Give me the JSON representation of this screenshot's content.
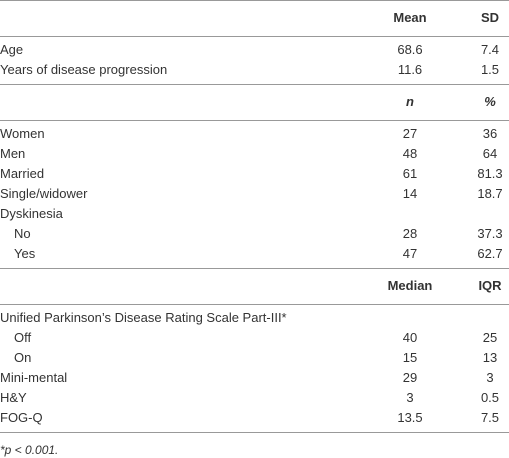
{
  "table": {
    "sections": [
      {
        "header": [
          "Mean",
          "SD"
        ],
        "header_italic": false,
        "rows": [
          {
            "label": "Age",
            "values": [
              "68.6",
              "7.4"
            ],
            "indent": false
          },
          {
            "label": "Years of disease progression",
            "values": [
              "11.6",
              "1.5"
            ],
            "indent": false
          }
        ]
      },
      {
        "header": [
          "n",
          "%"
        ],
        "header_italic": true,
        "rows": [
          {
            "label": "Women",
            "values": [
              "27",
              "36"
            ],
            "indent": false
          },
          {
            "label": "Men",
            "values": [
              "48",
              "64"
            ],
            "indent": false
          },
          {
            "label": "Married",
            "values": [
              "61",
              "81.3"
            ],
            "indent": false
          },
          {
            "label": "Single/widower",
            "values": [
              "14",
              "18.7"
            ],
            "indent": false
          },
          {
            "label": "Dyskinesia",
            "values": [],
            "indent": false
          },
          {
            "label": "No",
            "values": [
              "28",
              "37.3"
            ],
            "indent": true
          },
          {
            "label": "Yes",
            "values": [
              "47",
              "62.7"
            ],
            "indent": true
          }
        ]
      },
      {
        "header": [
          "Median",
          "IQR"
        ],
        "header_italic": false,
        "rows": [
          {
            "label": "Unified Parkinson’s Disease Rating Scale Part-III*",
            "values": [],
            "indent": false
          },
          {
            "label": "Off",
            "values": [
              "40",
              "25"
            ],
            "indent": true
          },
          {
            "label": "On",
            "values": [
              "15",
              "13"
            ],
            "indent": true
          },
          {
            "label": "Mini-mental",
            "values": [
              "29",
              "3"
            ],
            "indent": false
          },
          {
            "label": "H&Y",
            "values": [
              "3",
              "0.5"
            ],
            "indent": false
          },
          {
            "label": "FOG-Q",
            "values": [
              "13.5",
              "7.5"
            ],
            "indent": false
          }
        ]
      }
    ],
    "footnote": "*p < 0.001."
  }
}
